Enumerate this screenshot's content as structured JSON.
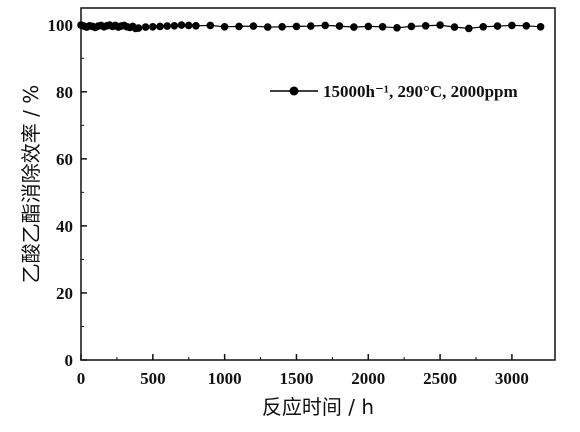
{
  "chart_data": {
    "type": "line",
    "title": "",
    "xlabel": "反应时间 / h",
    "ylabel": "乙酸乙酯消除效率 / %",
    "xlim": [
      0,
      3300
    ],
    "ylim": [
      0,
      105
    ],
    "xticks": [
      "0",
      "500",
      "1000",
      "1500",
      "2000",
      "2500",
      "3000"
    ],
    "yticks": [
      "0",
      "20",
      "40",
      "60",
      "80",
      "100"
    ],
    "grid": false,
    "legend_position": "top-right",
    "series": [
      {
        "name": "15000h⁻¹, 290°C, 2000ppm",
        "color": "#000000",
        "marker": "circle",
        "x": [
          0,
          20,
          40,
          60,
          80,
          100,
          120,
          140,
          160,
          180,
          200,
          220,
          240,
          260,
          280,
          300,
          320,
          340,
          360,
          380,
          400,
          450,
          500,
          550,
          600,
          650,
          700,
          750,
          800,
          900,
          1000,
          1100,
          1200,
          1300,
          1400,
          1500,
          1600,
          1700,
          1800,
          1900,
          2000,
          2100,
          2200,
          2300,
          2400,
          2500,
          2600,
          2700,
          2800,
          2900,
          3000,
          3100,
          3200
        ],
        "y": [
          99.9,
          99.6,
          99.3,
          99.7,
          99.5,
          99.2,
          99.6,
          99.8,
          99.4,
          99.7,
          99.9,
          99.5,
          99.8,
          99.3,
          99.6,
          99.8,
          99.4,
          99.2,
          99.5,
          98.9,
          99.0,
          99.3,
          99.4,
          99.5,
          99.6,
          99.7,
          99.9,
          99.8,
          99.7,
          99.8,
          99.4,
          99.5,
          99.6,
          99.3,
          99.4,
          99.5,
          99.6,
          99.8,
          99.6,
          99.3,
          99.5,
          99.4,
          99.1,
          99.5,
          99.7,
          99.9,
          99.3,
          98.9,
          99.4,
          99.6,
          99.8,
          99.7,
          99.4
        ]
      }
    ]
  }
}
